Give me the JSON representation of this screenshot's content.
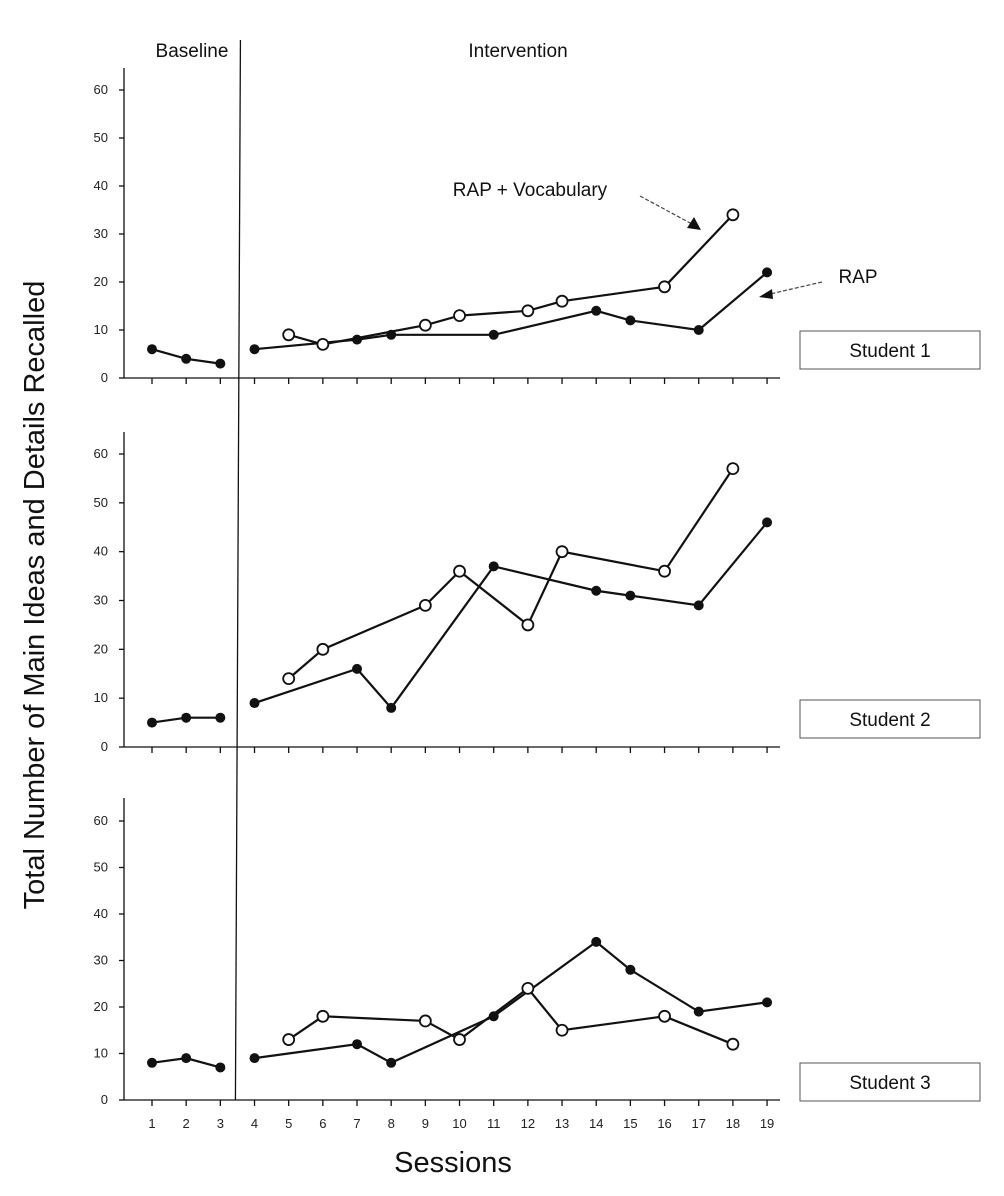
{
  "chart_data": {
    "type": "line",
    "ylabel": "Total Number of Main Ideas and Details Recalled",
    "xlabel": "Sessions",
    "phases": [
      "Baseline",
      "Intervention"
    ],
    "phase_change_after_session": 3,
    "x_ticks": [
      1,
      2,
      3,
      4,
      5,
      6,
      7,
      8,
      9,
      10,
      11,
      12,
      13,
      14,
      15,
      16,
      17,
      18,
      19
    ],
    "y_ticks": [
      0,
      10,
      20,
      30,
      40,
      50,
      60
    ],
    "ylim": [
      0,
      65
    ],
    "annotations": [
      "RAP + Vocabulary",
      "RAP"
    ],
    "panels": [
      {
        "label": "Student 1",
        "series": [
          {
            "name": "RAP",
            "marker": "filled",
            "segments": [
              {
                "x": [
                  1,
                  2,
                  3
                ],
                "y": [
                  6,
                  4,
                  3
                ]
              },
              {
                "x": [
                  4,
                  7,
                  8,
                  11,
                  14,
                  15,
                  17,
                  19
                ],
                "y": [
                  6,
                  8,
                  9,
                  9,
                  14,
                  12,
                  10,
                  22
                ]
              }
            ]
          },
          {
            "name": "RAP + Vocabulary",
            "marker": "open",
            "segments": [
              {
                "x": [
                  5,
                  6,
                  9,
                  10,
                  12,
                  13,
                  16,
                  18
                ],
                "y": [
                  9,
                  7,
                  11,
                  13,
                  14,
                  16,
                  19,
                  34
                ]
              }
            ]
          }
        ]
      },
      {
        "label": "Student 2",
        "series": [
          {
            "name": "RAP",
            "marker": "filled",
            "segments": [
              {
                "x": [
                  1,
                  2,
                  3
                ],
                "y": [
                  5,
                  6,
                  6
                ]
              },
              {
                "x": [
                  4,
                  7,
                  8,
                  11,
                  14,
                  15,
                  17,
                  19
                ],
                "y": [
                  9,
                  16,
                  8,
                  37,
                  32,
                  31,
                  29,
                  46
                ]
              }
            ]
          },
          {
            "name": "RAP + Vocabulary",
            "marker": "open",
            "segments": [
              {
                "x": [
                  5,
                  6,
                  9,
                  10,
                  12,
                  13,
                  16,
                  18
                ],
                "y": [
                  14,
                  20,
                  29,
                  36,
                  25,
                  40,
                  36,
                  57
                ]
              }
            ]
          }
        ]
      },
      {
        "label": "Student 3",
        "series": [
          {
            "name": "RAP",
            "marker": "filled",
            "segments": [
              {
                "x": [
                  1,
                  2,
                  3
                ],
                "y": [
                  8,
                  9,
                  7
                ]
              },
              {
                "x": [
                  4,
                  7,
                  8,
                  11,
                  14,
                  15,
                  17,
                  19
                ],
                "y": [
                  9,
                  12,
                  8,
                  18,
                  34,
                  28,
                  19,
                  21
                ]
              }
            ]
          },
          {
            "name": "RAP + Vocabulary",
            "marker": "open",
            "segments": [
              {
                "x": [
                  5,
                  6,
                  9,
                  10,
                  12,
                  13,
                  16,
                  18
                ],
                "y": [
                  13,
                  18,
                  17,
                  13,
                  24,
                  15,
                  18,
                  12
                ]
              }
            ]
          }
        ]
      }
    ]
  }
}
